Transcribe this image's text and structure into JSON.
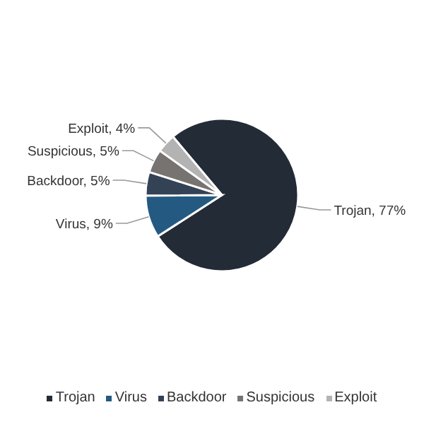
{
  "chart_data": {
    "type": "pie",
    "categories": [
      "Trojan",
      "Virus",
      "Backdoor",
      "Suspicious",
      "Exploit"
    ],
    "values": [
      77,
      9,
      5,
      5,
      4
    ],
    "colors": [
      "#232b36",
      "#245a82",
      "#344256",
      "#777370",
      "#b3b3b3"
    ],
    "value_labels": [
      "Trojan, 77%",
      "Virus, 9%",
      "Backdoor, 5%",
      "Suspicious, 5%",
      "Exploit, 4%"
    ],
    "legend": "bottom"
  }
}
